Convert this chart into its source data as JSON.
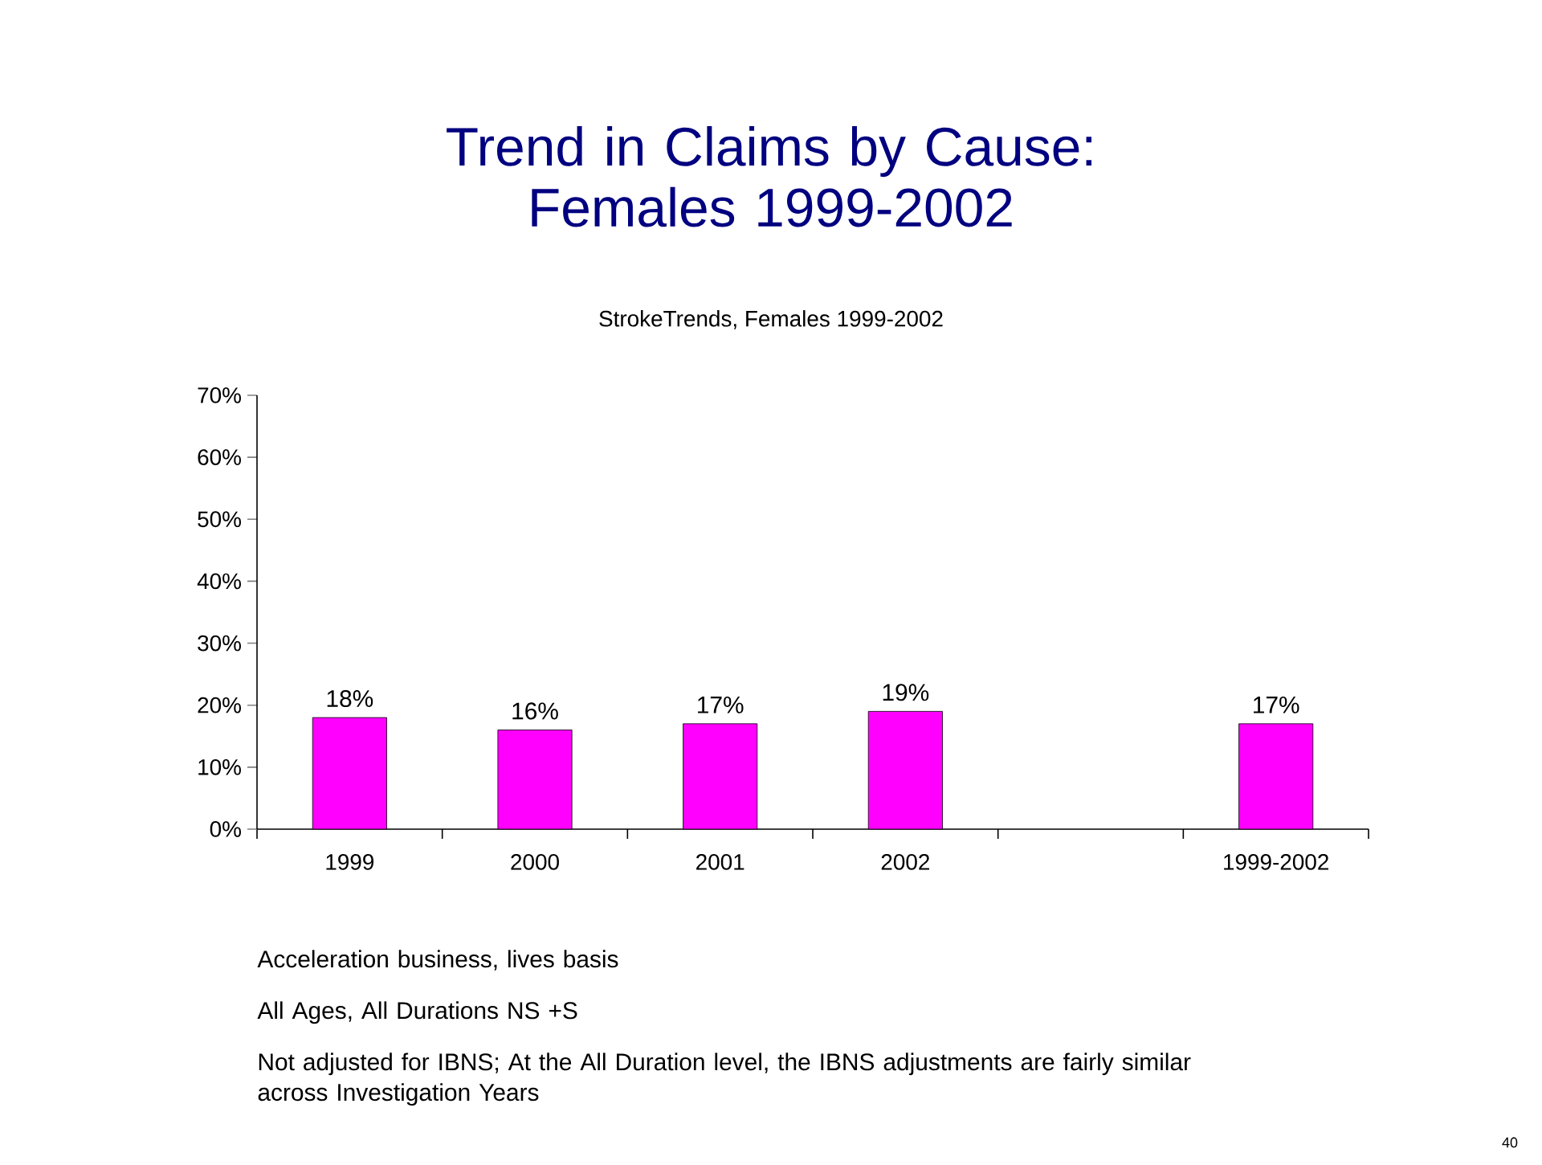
{
  "chart_data": {
    "type": "bar",
    "title": "Trend in Claims by Cause: Females 1999-2002",
    "subtitle": "StrokeTrends, Females 1999-2002",
    "categories": [
      "1999",
      "2000",
      "2001",
      "2002",
      null,
      "1999-2002"
    ],
    "values": [
      18,
      16,
      17,
      19,
      null,
      17
    ],
    "value_labels": [
      "18%",
      "16%",
      "17%",
      "19%",
      null,
      "17%"
    ],
    "color": "#ff00ff",
    "ylim": [
      0,
      70
    ],
    "yticks": [
      {
        "value": 0,
        "label": "0%"
      },
      {
        "value": 10,
        "label": "10%"
      },
      {
        "value": 20,
        "label": "20%"
      },
      {
        "value": 30,
        "label": "30%"
      },
      {
        "value": 40,
        "label": "40%"
      },
      {
        "value": 50,
        "label": "50%"
      },
      {
        "value": 60,
        "label": "60%"
      },
      {
        "value": 70,
        "label": "70%"
      }
    ],
    "annotations": [
      "Acceleration business, lives basis",
      "All Ages, All Durations NS +S",
      "Not adjusted for IBNS; At the All Duration level, the IBNS adjustments are fairly similar across Investigation Years",
      "40"
    ]
  }
}
